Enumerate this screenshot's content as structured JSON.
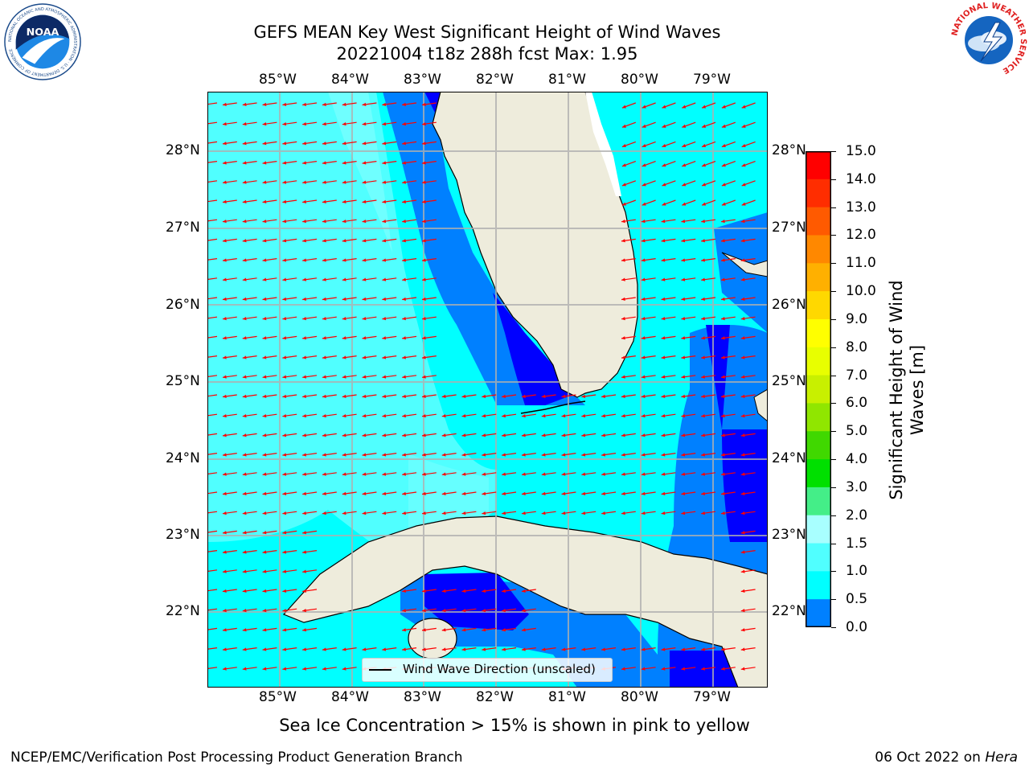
{
  "title": {
    "line1": "GEFS MEAN Key West Significant Height of Wind Waves",
    "line2": "20221004 t18z 288h fcst   Max: 1.95"
  },
  "logos": {
    "left": "NOAA",
    "left_ring_text": "NATIONAL OCEANIC AND ATMOSPHERIC ADMINISTRATION · U.S. DEPARTMENT OF COMMERCE",
    "right_ring_text": "NATIONAL WEATHER SERVICE"
  },
  "map": {
    "lon_labels_top": [
      "85°W",
      "84°W",
      "83°W",
      "82°W",
      "81°W",
      "80°W",
      "79°W"
    ],
    "lon_labels_bottom": [
      "85°W",
      "84°W",
      "83°W",
      "82°W",
      "81°W",
      "80°W",
      "79°W"
    ],
    "lat_labels_left": [
      "28°N",
      "27°N",
      "26°N",
      "25°N",
      "24°N",
      "23°N",
      "22°N"
    ],
    "lat_labels_right": [
      "28°N",
      "27°N",
      "26°N",
      "25°N",
      "24°N",
      "23°N",
      "22°N"
    ],
    "legend_label": "Wind Wave Direction (unscaled)",
    "arrow_color": "#ff0000",
    "land_color": "#eeecdc",
    "gridline_color": "#b0b0b0"
  },
  "colorbar": {
    "title": "Significant Height of Wind Waves [m]",
    "labels": [
      "15.0",
      "14.0",
      "13.0",
      "12.0",
      "11.0",
      "10.0",
      "9.0",
      "8.0",
      "7.0",
      "6.0",
      "5.0",
      "4.0",
      "3.0",
      "2.0",
      "1.5",
      "1.0",
      "0.5",
      "0.0"
    ],
    "colors": [
      "#ff0000",
      "#ff2d00",
      "#ff5a00",
      "#ff8800",
      "#ffb000",
      "#ffd800",
      "#ffff00",
      "#e8ff00",
      "#c8f000",
      "#90e600",
      "#40d800",
      "#00e000",
      "#44ee88",
      "#a8ffff",
      "#50ffff",
      "#00ffff",
      "#0080ff",
      "#0000ff"
    ]
  },
  "footer": {
    "note": "Sea Ice Concentration > 15% is shown in pink to yellow",
    "left": "NCEP/EMC/Verification Post Processing Product Generation Branch",
    "right_prefix": "06 Oct 2022 on ",
    "right_host": "Hera"
  }
}
